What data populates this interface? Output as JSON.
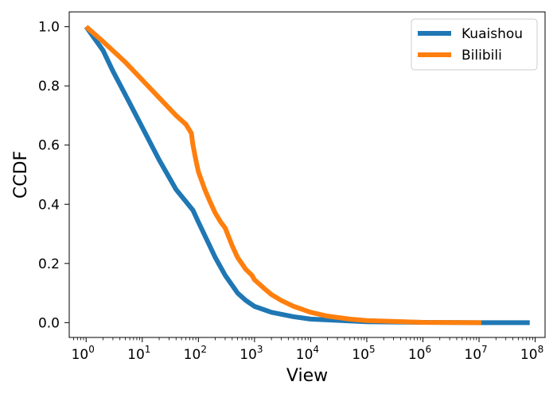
{
  "chart_data": {
    "type": "line",
    "title": "",
    "xlabel": "View",
    "ylabel": "CCDF",
    "x_scale": "log",
    "xlim": [
      0.5,
      150000000
    ],
    "ylim": [
      -0.05,
      1.05
    ],
    "x_ticks": [
      1,
      10,
      100,
      1000,
      10000,
      100000,
      1000000,
      10000000,
      100000000
    ],
    "x_tick_labels": [
      {
        "base": "10",
        "exp": "0"
      },
      {
        "base": "10",
        "exp": "1"
      },
      {
        "base": "10",
        "exp": "2"
      },
      {
        "base": "10",
        "exp": "3"
      },
      {
        "base": "10",
        "exp": "4"
      },
      {
        "base": "10",
        "exp": "5"
      },
      {
        "base": "10",
        "exp": "6"
      },
      {
        "base": "10",
        "exp": "7"
      },
      {
        "base": "10",
        "exp": "8"
      }
    ],
    "y_ticks": [
      0.0,
      0.2,
      0.4,
      0.6,
      0.8,
      1.0
    ],
    "y_tick_labels": [
      "0.0",
      "0.2",
      "0.4",
      "0.6",
      "0.8",
      "1.0"
    ],
    "grid": false,
    "legend": "top-right",
    "series": [
      {
        "name": "Kuaishou",
        "color": "#1f77b4",
        "x": [
          1,
          2,
          3,
          5,
          10,
          20,
          40,
          80,
          100,
          150,
          200,
          300,
          500,
          700,
          1000,
          2000,
          5000,
          10000,
          100000,
          1000000,
          10000000,
          80000000
        ],
        "y": [
          1.0,
          0.92,
          0.85,
          0.77,
          0.66,
          0.55,
          0.45,
          0.38,
          0.34,
          0.27,
          0.22,
          0.16,
          0.1,
          0.075,
          0.055,
          0.035,
          0.02,
          0.012,
          0.003,
          0.001,
          0.0,
          0.0
        ]
      },
      {
        "name": "Bilibili",
        "color": "#ff7f0e",
        "x": [
          1,
          2,
          5,
          10,
          20,
          40,
          60,
          75,
          80,
          90,
          100,
          130,
          160,
          200,
          250,
          300,
          400,
          500,
          700,
          900,
          1000,
          1500,
          2000,
          3000,
          5000,
          10000,
          20000,
          50000,
          100000,
          1000000,
          11000000
        ],
        "y": [
          1.0,
          0.95,
          0.88,
          0.82,
          0.76,
          0.7,
          0.67,
          0.64,
          0.6,
          0.55,
          0.51,
          0.45,
          0.41,
          0.37,
          0.34,
          0.32,
          0.26,
          0.22,
          0.18,
          0.16,
          0.145,
          0.115,
          0.095,
          0.075,
          0.055,
          0.035,
          0.022,
          0.012,
          0.007,
          0.001,
          0.0
        ]
      }
    ]
  }
}
